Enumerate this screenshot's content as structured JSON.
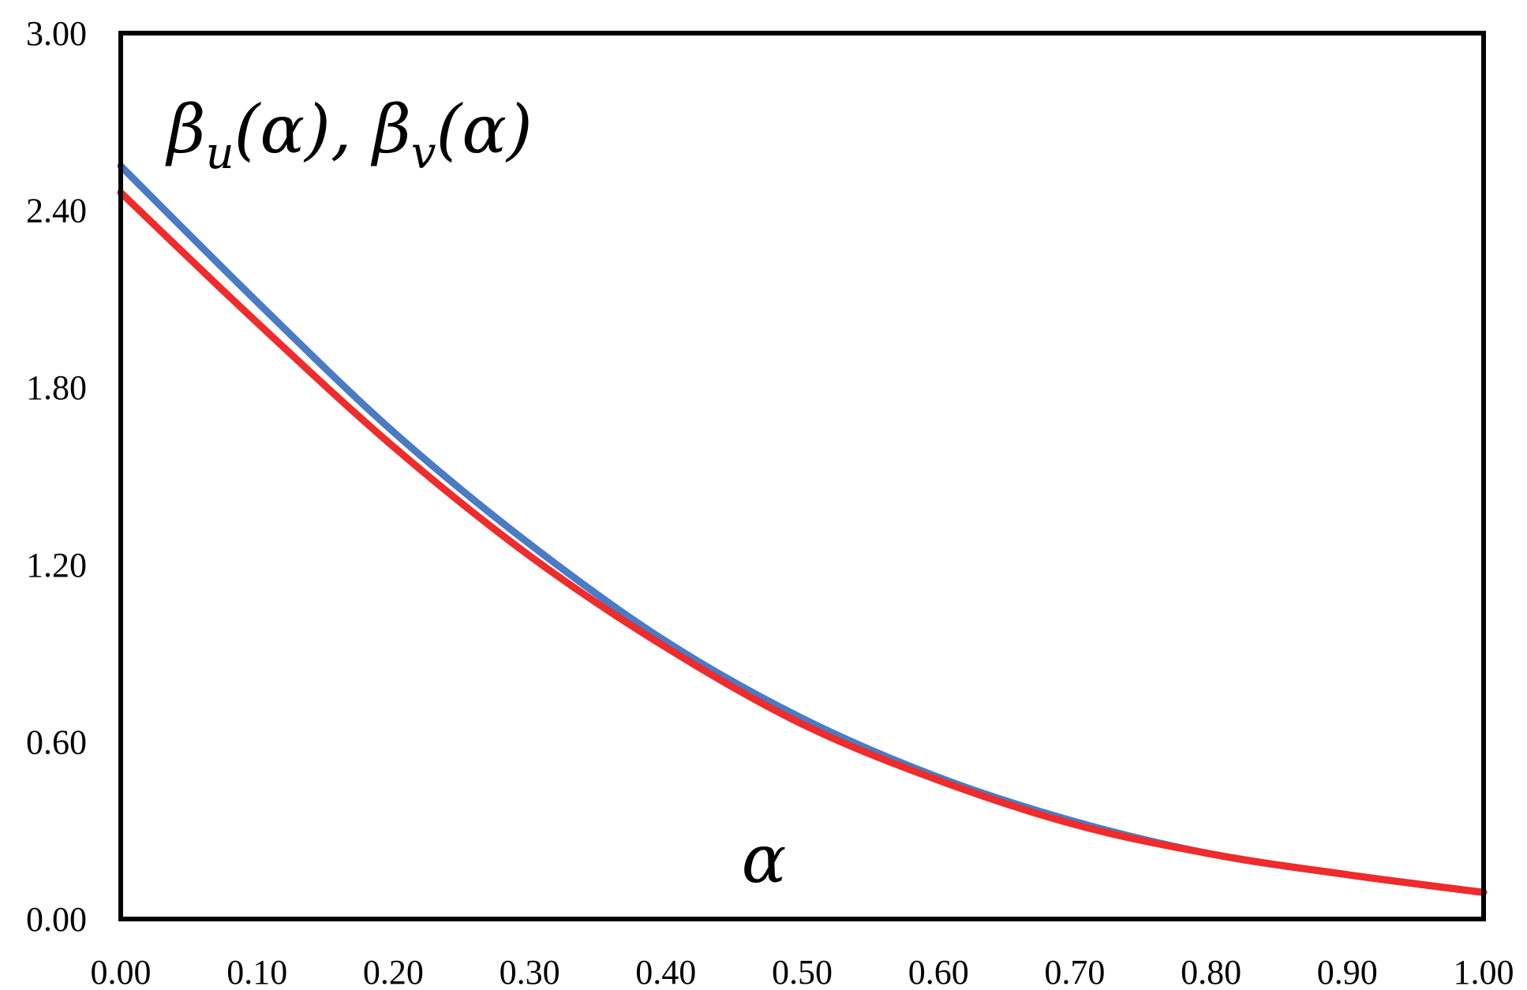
{
  "chart_data": {
    "type": "line",
    "title": "",
    "xlabel": "α",
    "ylabel": "βu(α), βv(α)",
    "ylabel_parts": {
      "beta1": "β",
      "sub1": "u",
      "arg1": "(α), ",
      "beta2": "β",
      "sub2": "v",
      "arg2": "(α)"
    },
    "xlim": [
      0,
      1
    ],
    "ylim": [
      0,
      3
    ],
    "x_ticks": [
      "0.00",
      "0.10",
      "0.20",
      "0.30",
      "0.40",
      "0.50",
      "0.60",
      "0.70",
      "0.80",
      "0.90",
      "1.00"
    ],
    "y_ticks": [
      "0.00",
      "0.60",
      "1.20",
      "1.80",
      "2.40",
      "3.00"
    ],
    "grid": false,
    "legend": "none",
    "x": [
      0.0,
      0.1,
      0.2,
      0.3,
      0.4,
      0.5,
      0.6,
      0.7,
      0.8,
      0.9,
      1.0
    ],
    "series": [
      {
        "color": "#4a7bc4",
        "values": [
          2.55,
          2.09,
          1.65,
          1.27,
          0.94,
          0.68,
          0.48,
          0.33,
          0.22,
          0.15,
          0.09
        ]
      },
      {
        "color": "#ef2b2b",
        "values": [
          2.46,
          2.02,
          1.6,
          1.23,
          0.92,
          0.66,
          0.47,
          0.32,
          0.22,
          0.15,
          0.09
        ]
      }
    ]
  }
}
